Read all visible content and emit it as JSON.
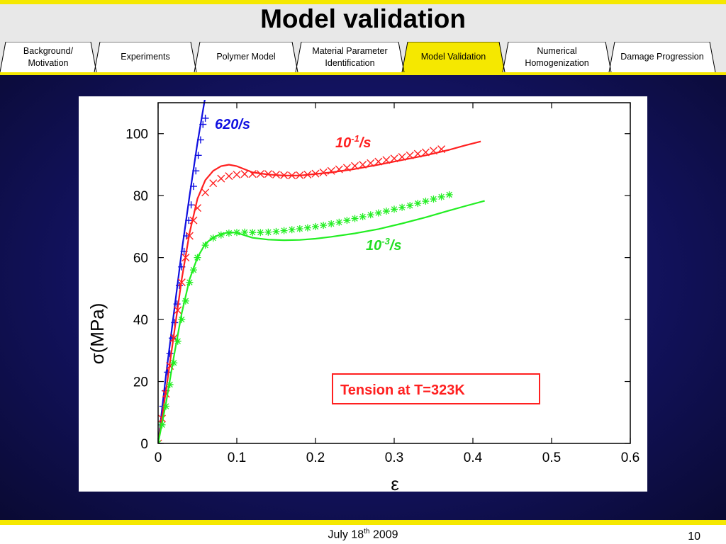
{
  "slide": {
    "title": "Model validation",
    "footer_date_pre": "July 18",
    "footer_date_sup": "th",
    "footer_date_post": " 2009",
    "page_number": "10"
  },
  "tabs": [
    {
      "label": "Background/ Motivation",
      "active": false
    },
    {
      "label": "Experiments",
      "active": false
    },
    {
      "label": "Polymer Model",
      "active": false
    },
    {
      "label": "Material Parameter Identification",
      "active": false
    },
    {
      "label": "Model Validation",
      "active": true
    },
    {
      "label": "Numerical Homogenization",
      "active": false
    },
    {
      "label": "Damage Progression",
      "active": false
    }
  ],
  "colors": {
    "red": "#ff2020",
    "green": "#22ee22",
    "blue": "#1010e0",
    "tab_active": "#f5e800"
  },
  "chart_data": {
    "type": "line",
    "xlabel": "ε",
    "ylabel": "σ(MPa)",
    "xlim": [
      0,
      0.6
    ],
    "ylim": [
      0,
      110
    ],
    "xticks": [
      "0",
      "0.1",
      "0.2",
      "0.3",
      "0.4",
      "0.5",
      "0.6"
    ],
    "yticks": [
      "0",
      "20",
      "40",
      "60",
      "80",
      "100"
    ],
    "annotation": "Tension at T=323K",
    "series": [
      {
        "name": "620/s",
        "color": "#1010e0",
        "marker": "+",
        "model": {
          "x": [
            0,
            0.01,
            0.02,
            0.03,
            0.04,
            0.05,
            0.06
          ],
          "y": [
            0,
            22,
            42,
            62,
            80,
            97,
            112
          ]
        },
        "experiment": {
          "x": [
            0,
            0.003,
            0.006,
            0.009,
            0.012,
            0.015,
            0.018,
            0.021,
            0.024,
            0.027,
            0.03,
            0.033,
            0.036,
            0.039,
            0.042,
            0.045,
            0.048,
            0.051,
            0.054,
            0.057,
            0.06
          ],
          "y": [
            0,
            6,
            12,
            17,
            23,
            29,
            34,
            39,
            45,
            51,
            57,
            62,
            67,
            72,
            77,
            83,
            88,
            93,
            98,
            103,
            105
          ]
        }
      },
      {
        "name": "10",
        "sup": "-1",
        "suffix": "/s",
        "color": "#ff2020",
        "marker": "x",
        "model": {
          "x": [
            0,
            0.01,
            0.02,
            0.03,
            0.04,
            0.05,
            0.06,
            0.07,
            0.08,
            0.09,
            0.1,
            0.11,
            0.12,
            0.14,
            0.16,
            0.18,
            0.2,
            0.22,
            0.25,
            0.28,
            0.31,
            0.34,
            0.37,
            0.39,
            0.41
          ],
          "y": [
            0,
            17,
            35,
            53,
            68,
            79,
            85,
            88,
            89.5,
            90,
            89.5,
            88.5,
            87.5,
            86.8,
            86.5,
            86.5,
            87,
            87.5,
            88.6,
            90,
            91.5,
            93,
            94.8,
            96.2,
            97.5
          ]
        },
        "experiment": {
          "x": [
            0,
            0.005,
            0.01,
            0.015,
            0.02,
            0.025,
            0.03,
            0.035,
            0.04,
            0.045,
            0.05,
            0.06,
            0.07,
            0.08,
            0.09,
            0.1,
            0.11,
            0.12,
            0.13,
            0.14,
            0.15,
            0.16,
            0.17,
            0.18,
            0.19,
            0.2,
            0.21,
            0.22,
            0.23,
            0.24,
            0.25,
            0.26,
            0.27,
            0.28,
            0.29,
            0.3,
            0.31,
            0.32,
            0.33,
            0.34,
            0.35,
            0.36
          ],
          "y": [
            0,
            8,
            16,
            25,
            34,
            43,
            52,
            60,
            67,
            72,
            76,
            81,
            84,
            85.5,
            86.3,
            86.8,
            87,
            87,
            87,
            87,
            86.8,
            86.6,
            86.5,
            86.6,
            86.8,
            87.1,
            87.5,
            88,
            88.5,
            89,
            89.6,
            90,
            90.5,
            91,
            91.5,
            92,
            92.5,
            93,
            93.5,
            94,
            94.5,
            95
          ]
        }
      },
      {
        "name": "10",
        "sup": "-3",
        "suffix": "/s",
        "color": "#22ee22",
        "marker": "*",
        "model": {
          "x": [
            0,
            0.01,
            0.02,
            0.03,
            0.04,
            0.05,
            0.06,
            0.07,
            0.08,
            0.09,
            0.1,
            0.11,
            0.12,
            0.14,
            0.16,
            0.18,
            0.2,
            0.22,
            0.25,
            0.28,
            0.31,
            0.34,
            0.37,
            0.39,
            0.415
          ],
          "y": [
            0,
            13,
            28,
            42,
            53,
            60,
            64.5,
            66.5,
            67.6,
            68.2,
            68,
            67.2,
            66.4,
            65.8,
            65.6,
            65.7,
            66.1,
            66.7,
            67.8,
            69.2,
            71,
            73,
            75.2,
            76.6,
            78.3
          ]
        },
        "experiment": {
          "x": [
            0,
            0.005,
            0.01,
            0.015,
            0.02,
            0.025,
            0.03,
            0.035,
            0.04,
            0.045,
            0.05,
            0.06,
            0.07,
            0.08,
            0.09,
            0.1,
            0.11,
            0.12,
            0.13,
            0.14,
            0.15,
            0.16,
            0.17,
            0.18,
            0.19,
            0.2,
            0.21,
            0.22,
            0.23,
            0.24,
            0.25,
            0.26,
            0.27,
            0.28,
            0.29,
            0.3,
            0.31,
            0.32,
            0.33,
            0.34,
            0.35,
            0.36,
            0.37
          ],
          "y": [
            0,
            6,
            12,
            19,
            26,
            33,
            40,
            46,
            52,
            56,
            60,
            64,
            66.3,
            67.3,
            67.9,
            68.1,
            68.2,
            68.1,
            68.1,
            68.2,
            68.4,
            68.7,
            69,
            69.3,
            69.6,
            70,
            70.4,
            70.9,
            71.4,
            72,
            72.6,
            73.2,
            73.8,
            74.4,
            75,
            75.6,
            76.2,
            76.8,
            77.5,
            78.2,
            78.9,
            79.6,
            80.3
          ]
        }
      }
    ]
  }
}
